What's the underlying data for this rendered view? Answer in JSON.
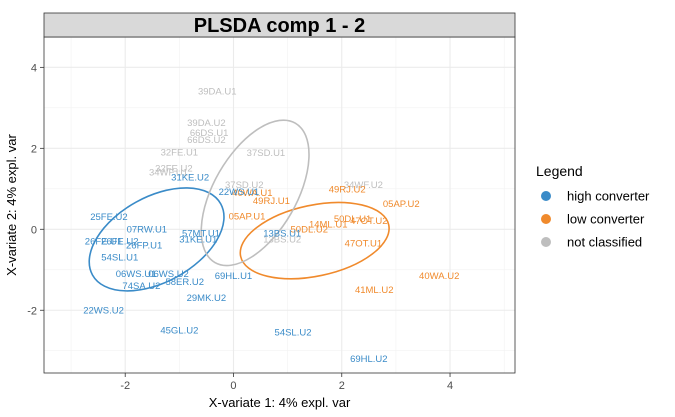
{
  "chart_data": {
    "type": "scatter",
    "title": "PLSDA comp 1 - 2",
    "xlabel": "X-variate 1: 4% expl. var",
    "ylabel": "X-variate 2: 4% expl. var",
    "xlim": [
      -3.5,
      5.2
    ],
    "ylim": [
      -3.55,
      4.75
    ],
    "xticks": [
      -2,
      0,
      2,
      4
    ],
    "yticks": [
      -2,
      0,
      2,
      4
    ],
    "grid": true,
    "legend": {
      "title": "Legend",
      "position": "right"
    },
    "series": [
      {
        "name": "high converter",
        "color": "#3a8bc8",
        "ellipse": {
          "cx": -1.42,
          "cy": -0.25,
          "rx": 3.1,
          "ry": 1.8,
          "angle": -29
        },
        "points": [
          {
            "label": "25FE.U2",
            "x": -2.3,
            "y": 0.3
          },
          {
            "label": "07RW.U1",
            "x": -1.6,
            "y": 0.0
          },
          {
            "label": "26FE.U1",
            "x": -2.4,
            "y": -0.3
          },
          {
            "label": "26FE.U2",
            "x": -2.1,
            "y": -0.3
          },
          {
            "label": "26FP.U1",
            "x": -1.65,
            "y": -0.4
          },
          {
            "label": "31KE.U2",
            "x": -0.8,
            "y": 1.28
          },
          {
            "label": "22WS.U1",
            "x": 0.1,
            "y": 0.92
          },
          {
            "label": "57MT.U1",
            "x": -0.6,
            "y": -0.1
          },
          {
            "label": "31KE.U1",
            "x": -0.65,
            "y": -0.25
          },
          {
            "label": "54SL.U1",
            "x": -2.1,
            "y": -0.7
          },
          {
            "label": "06WS.U1",
            "x": -1.8,
            "y": -1.1
          },
          {
            "label": "06WS.U2",
            "x": -1.2,
            "y": -1.1
          },
          {
            "label": "74SA.U2",
            "x": -1.7,
            "y": -1.4
          },
          {
            "label": "58ER.U2",
            "x": -0.9,
            "y": -1.3
          },
          {
            "label": "69HL.U1",
            "x": 0.0,
            "y": -1.15
          },
          {
            "label": "29MK.U2",
            "x": -0.5,
            "y": -1.7
          },
          {
            "label": "22WS.U2",
            "x": -2.4,
            "y": -2.0
          },
          {
            "label": "45GL.U2",
            "x": -1.0,
            "y": -2.5
          },
          {
            "label": "54SL.U2",
            "x": 1.1,
            "y": -2.55
          },
          {
            "label": "13BS.U1",
            "x": 0.9,
            "y": -0.1
          },
          {
            "label": "69HL.U2",
            "x": 2.5,
            "y": -3.2
          }
        ]
      },
      {
        "name": "low converter",
        "color": "#f08a2c",
        "ellipse": {
          "cx": 1.5,
          "cy": -0.28,
          "rx": 3.2,
          "ry": 1.5,
          "angle": -12
        },
        "points": [
          {
            "label": "49RJ.U2",
            "x": 2.1,
            "y": 0.98
          },
          {
            "label": "49RJ.U1",
            "x": 0.7,
            "y": 0.7
          },
          {
            "label": "40WA.U1",
            "x": 0.35,
            "y": 0.9
          },
          {
            "label": "05AP.U1",
            "x": 0.25,
            "y": 0.32
          },
          {
            "label": "05AP.U2",
            "x": 3.1,
            "y": 0.62
          },
          {
            "label": "50DL.U1",
            "x": 2.2,
            "y": 0.25
          },
          {
            "label": "47OT.U2",
            "x": 2.5,
            "y": 0.2
          },
          {
            "label": "50DL.U2",
            "x": 1.4,
            "y": 0.0
          },
          {
            "label": "14ML.U1",
            "x": 1.75,
            "y": 0.12
          },
          {
            "label": "47OT.U1",
            "x": 2.4,
            "y": -0.35
          },
          {
            "label": "40WA.U2",
            "x": 3.8,
            "y": -1.15
          },
          {
            "label": "41ML.U2",
            "x": 2.6,
            "y": -1.5
          }
        ]
      },
      {
        "name": "not classified",
        "color": "#bebebe",
        "ellipse": {
          "cx": 0.4,
          "cy": 0.9,
          "rx": 3.4,
          "ry": 1.75,
          "angle": -60
        },
        "points": [
          {
            "label": "39DA.U1",
            "x": -0.3,
            "y": 3.4
          },
          {
            "label": "39DA.U2",
            "x": -0.5,
            "y": 2.62
          },
          {
            "label": "66DS.U1",
            "x": -0.45,
            "y": 2.38
          },
          {
            "label": "66DS.U2",
            "x": -0.5,
            "y": 2.2
          },
          {
            "label": "32FE.U1",
            "x": -1.0,
            "y": 1.9
          },
          {
            "label": "37SD.U1",
            "x": 0.6,
            "y": 1.88
          },
          {
            "label": "32FE.U2",
            "x": -1.1,
            "y": 1.5
          },
          {
            "label": "34WF.U1",
            "x": -1.2,
            "y": 1.4
          },
          {
            "label": "34WF.U2",
            "x": 2.4,
            "y": 1.1
          },
          {
            "label": "37SD.U2",
            "x": 0.2,
            "y": 1.1
          },
          {
            "label": "13BS.U2",
            "x": 0.9,
            "y": -0.25
          }
        ]
      }
    ]
  }
}
